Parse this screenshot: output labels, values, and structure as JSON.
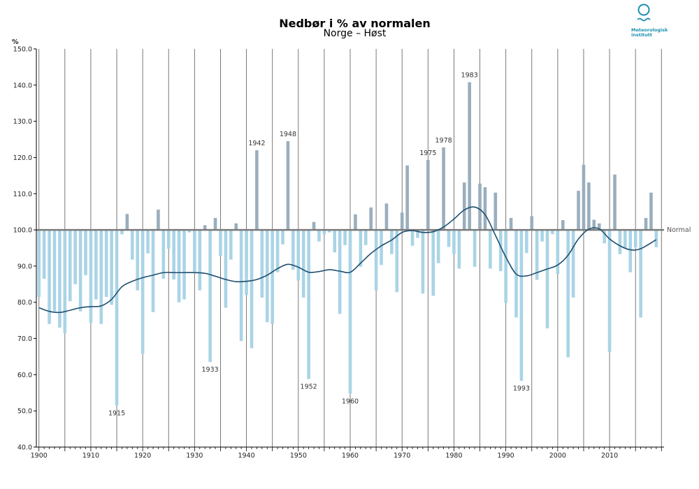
{
  "title": "Nedbør i % av normalen",
  "subtitle": "Norge – Høst",
  "logo": {
    "text": "Meteorologisk\ninstitutt",
    "color": "#1b8fb0"
  },
  "chart_data": {
    "type": "bar",
    "title": "Nedbør i % av normalen",
    "subtitle": "Norge – Høst",
    "ylabel": "%",
    "xlabel": "",
    "ylim": [
      40,
      150
    ],
    "baseline": 100,
    "baseline_label": "Normal",
    "yticks": [
      40,
      50,
      60,
      70,
      80,
      90,
      100,
      110,
      120,
      130,
      140,
      150
    ],
    "ytick_labels": [
      "40.0",
      "50.0",
      "60.0",
      "70.0",
      "80.0",
      "90.0",
      "100.0",
      "110.0",
      "120.0",
      "130.0",
      "140.0",
      "150.0"
    ],
    "xlim": [
      1899.5,
      2020.5
    ],
    "xticks": [
      1900,
      1910,
      1920,
      1930,
      1940,
      1950,
      1960,
      1970,
      1980,
      1990,
      2000,
      2010
    ],
    "colors": {
      "above": "#9aaebd",
      "below": "#aad4e6",
      "smooth": "#1e4e6e",
      "baseline": "#7a7a7a"
    },
    "series": [
      {
        "name": "Nedbør",
        "x": [
          1900,
          1901,
          1902,
          1903,
          1904,
          1905,
          1906,
          1907,
          1908,
          1909,
          1910,
          1911,
          1912,
          1913,
          1914,
          1915,
          1916,
          1917,
          1918,
          1919,
          1920,
          1921,
          1922,
          1923,
          1924,
          1925,
          1926,
          1927,
          1928,
          1929,
          1930,
          1931,
          1932,
          1933,
          1934,
          1935,
          1936,
          1937,
          1938,
          1939,
          1940,
          1941,
          1942,
          1943,
          1944,
          1945,
          1946,
          1947,
          1948,
          1949,
          1950,
          1951,
          1952,
          1953,
          1954,
          1955,
          1956,
          1957,
          1958,
          1959,
          1960,
          1961,
          1962,
          1963,
          1964,
          1965,
          1966,
          1967,
          1968,
          1969,
          1970,
          1971,
          1972,
          1973,
          1974,
          1975,
          1976,
          1977,
          1978,
          1979,
          1980,
          1981,
          1982,
          1983,
          1984,
          1985,
          1986,
          1987,
          1988,
          1989,
          1990,
          1991,
          1992,
          1993,
          1994,
          1995,
          1996,
          1997,
          1998,
          1999,
          2000,
          2001,
          2002,
          2003,
          2004,
          2005,
          2006,
          2007,
          2008,
          2009,
          2010,
          2011,
          2012,
          2013,
          2014,
          2015,
          2016,
          2017,
          2018,
          2019
        ],
        "values": [
          81.5,
          86.5,
          74,
          77.5,
          73,
          71.5,
          80.3,
          85,
          77.5,
          87.5,
          74.3,
          80.8,
          74,
          81.5,
          79.3,
          51.5,
          98.8,
          104.4,
          91.8,
          83.3,
          65.8,
          93.5,
          77.3,
          105.6,
          86.5,
          94.8,
          86.3,
          80,
          80.8,
          99.3,
          88,
          83.3,
          101.3,
          63.5,
          103.3,
          92.8,
          78.5,
          91.8,
          101.8,
          69.3,
          82,
          67.3,
          122,
          81.3,
          74.5,
          74,
          88.3,
          96,
          124.5,
          89,
          86,
          81.3,
          58.8,
          102.2,
          96.8,
          98.8,
          99.3,
          93.8,
          76.8,
          95.8,
          54.8,
          104.3,
          89.8,
          95.8,
          106.2,
          83.3,
          90.3,
          107.3,
          93.3,
          82.8,
          104.8,
          117.8,
          95.6,
          97.8,
          82.4,
          119.3,
          81.8,
          90.8,
          122.8,
          95.3,
          93.3,
          89.3,
          113.1,
          140.8,
          89.8,
          112.8,
          111.8,
          89.3,
          110.3,
          88.6,
          79.8,
          103.3,
          75.8,
          58.3,
          93.6,
          103.8,
          86.2,
          96.8,
          72.8,
          98.8,
          87.8,
          102.7,
          64.8,
          81.3,
          110.8,
          118,
          113.1,
          102.8,
          101.8,
          96.3,
          66.3,
          115.3,
          93.3,
          94.8,
          88.3,
          95.2,
          75.8,
          103.3,
          110.3,
          95.2
        ]
      },
      {
        "name": "Glattet",
        "x": [
          1900,
          1902,
          1904,
          1906,
          1908,
          1910,
          1912,
          1914,
          1916,
          1918,
          1920,
          1922,
          1924,
          1926,
          1928,
          1930,
          1932,
          1934,
          1936,
          1938,
          1940,
          1942,
          1944,
          1946,
          1948,
          1950,
          1952,
          1954,
          1956,
          1958,
          1960,
          1962,
          1964,
          1966,
          1968,
          1970,
          1972,
          1974,
          1976,
          1978,
          1980,
          1982,
          1984,
          1986,
          1988,
          1990,
          1992,
          1994,
          1996,
          1998,
          2000,
          2002,
          2004,
          2006,
          2008,
          2010,
          2012,
          2014,
          2016,
          2019
        ],
        "values": [
          78.5,
          77.5,
          77.2,
          77.8,
          78.5,
          78.8,
          79,
          80.8,
          84.3,
          85.8,
          86.8,
          87.5,
          88.2,
          88.2,
          88.2,
          88.2,
          88,
          87.2,
          86.3,
          85.7,
          85.8,
          86.3,
          87.5,
          89.3,
          90.5,
          89.7,
          88.3,
          88.5,
          89,
          88.6,
          88.3,
          90.8,
          93.5,
          95.6,
          97.2,
          99.3,
          99.8,
          99.3,
          99.5,
          100.8,
          103,
          105.5,
          106.3,
          104.2,
          98.5,
          92.5,
          87.8,
          87.3,
          88.2,
          89.2,
          90.3,
          93,
          97.5,
          100.2,
          100.3,
          97.5,
          95.6,
          94.5,
          94.8,
          97.3
        ]
      }
    ],
    "annotations": [
      {
        "year": 1915,
        "text": "1915"
      },
      {
        "year": 1933,
        "text": "1933"
      },
      {
        "year": 1942,
        "text": "1942"
      },
      {
        "year": 1948,
        "text": "1948"
      },
      {
        "year": 1952,
        "text": "1952"
      },
      {
        "year": 1960,
        "text": "1960"
      },
      {
        "year": 1975,
        "text": "1975"
      },
      {
        "year": 1978,
        "text": "1978"
      },
      {
        "year": 1983,
        "text": "1983"
      },
      {
        "year": 1993,
        "text": "1993"
      }
    ]
  }
}
